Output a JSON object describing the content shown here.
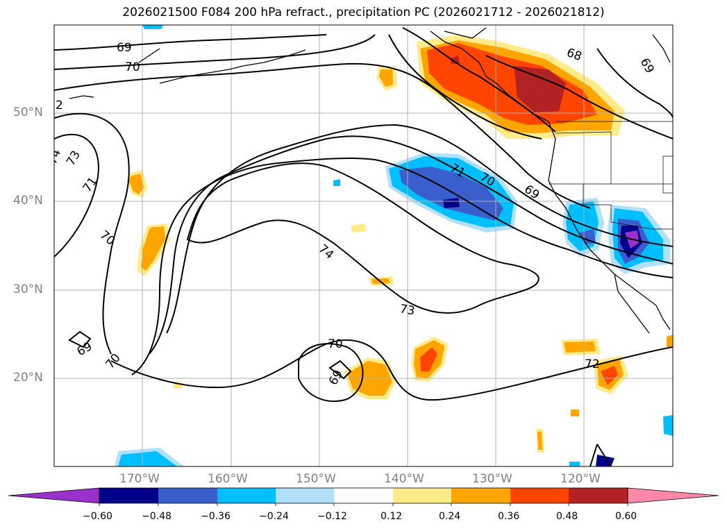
{
  "title": "2026021500 F084 200 hPa refract., precipitation PC (2026021712 - 2026021812)",
  "lat_labels": [
    "50°N",
    "40°N",
    "30°N",
    "20°N"
  ],
  "lon_labels": [
    "170°W",
    "160°W",
    "150°W",
    "140°W",
    "130°W",
    "120°W"
  ],
  "contour_labels": [
    "69",
    "70",
    "68",
    "69",
    "2",
    "74",
    "73",
    "71",
    "70",
    "71",
    "70",
    "69",
    "74",
    "73",
    "69",
    "70",
    "70",
    "69",
    "72"
  ],
  "colorbar": {
    "ticks": [
      "−0.60",
      "−0.48",
      "−0.36",
      "−0.24",
      "−0.12",
      "0.12",
      "0.24",
      "0.36",
      "0.48",
      "0.60"
    ],
    "colors": [
      "#9932cc",
      "#00008b",
      "#3a5fcd",
      "#00bfff",
      "#b0e0fa",
      "#ffffff",
      "#ffeb8a",
      "#ffa500",
      "#ff4500",
      "#b22222",
      "#ff88aa"
    ]
  },
  "map_extent": {
    "lon_min": -180,
    "lon_max": -110,
    "lat_min": 10,
    "lat_max": 60
  }
}
